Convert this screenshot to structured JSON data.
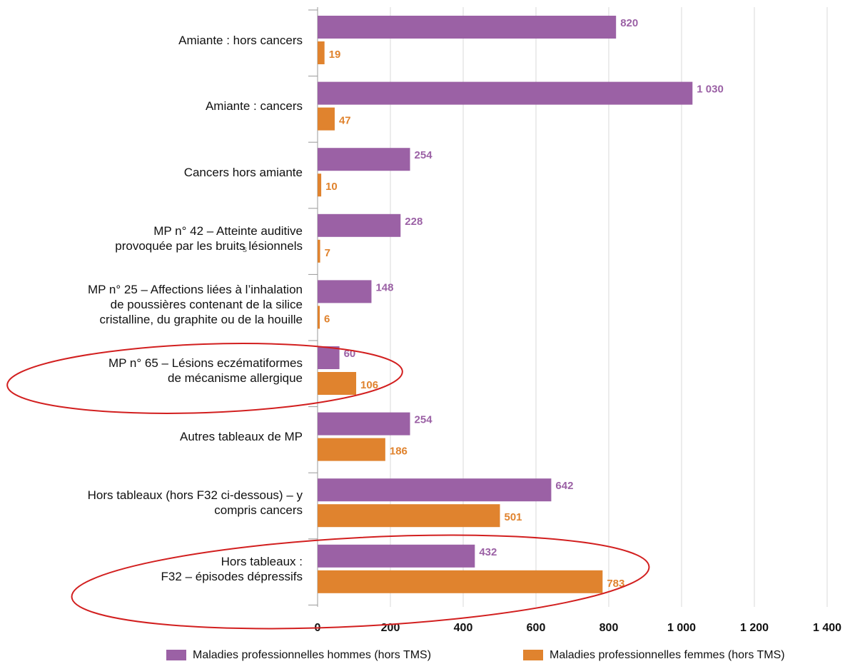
{
  "stray_text": "s",
  "chart_data": {
    "type": "hbar",
    "categories": [
      "Amiante : hors cancers",
      "Amiante : cancers",
      "Cancers hors amiante",
      "MP n° 42 – Atteinte auditive\nprovoquée par les bruits lésionnels",
      "MP n° 25 – Affections liées à l’inhalation\nde poussières contenant de la silice\ncristalline, du graphite ou de la houille",
      "MP n° 65 – Lésions eczématiformes\nde mécanisme allergique",
      "Autres tableaux de MP",
      "Hors tableaux (hors F32 ci-dessous) – y\ncompris cancers",
      "Hors tableaux :\nF32 – épisodes dépressifs"
    ],
    "series": [
      {
        "name": "Maladies professionnelles hommes (hors TMS)",
        "color": "#9b61a5",
        "values": [
          820,
          1030,
          254,
          228,
          148,
          60,
          254,
          642,
          432
        ],
        "value_labels": [
          "820",
          "1 030",
          "254",
          "228",
          "148",
          "60",
          "254",
          "642",
          "432"
        ]
      },
      {
        "name": "Maladies professionnelles femmes (hors TMS)",
        "color": "#e0832e",
        "values": [
          19,
          47,
          10,
          7,
          6,
          106,
          186,
          501,
          783
        ]
      }
    ],
    "xlim": [
      0,
      1400
    ],
    "xticks": [
      0,
      200,
      400,
      600,
      800,
      {
        "value": 1000,
        "label": "1 000"
      },
      {
        "value": 1200,
        "label": "1 200"
      },
      {
        "value": 1400,
        "label": "1 400"
      }
    ],
    "grid": true
  }
}
